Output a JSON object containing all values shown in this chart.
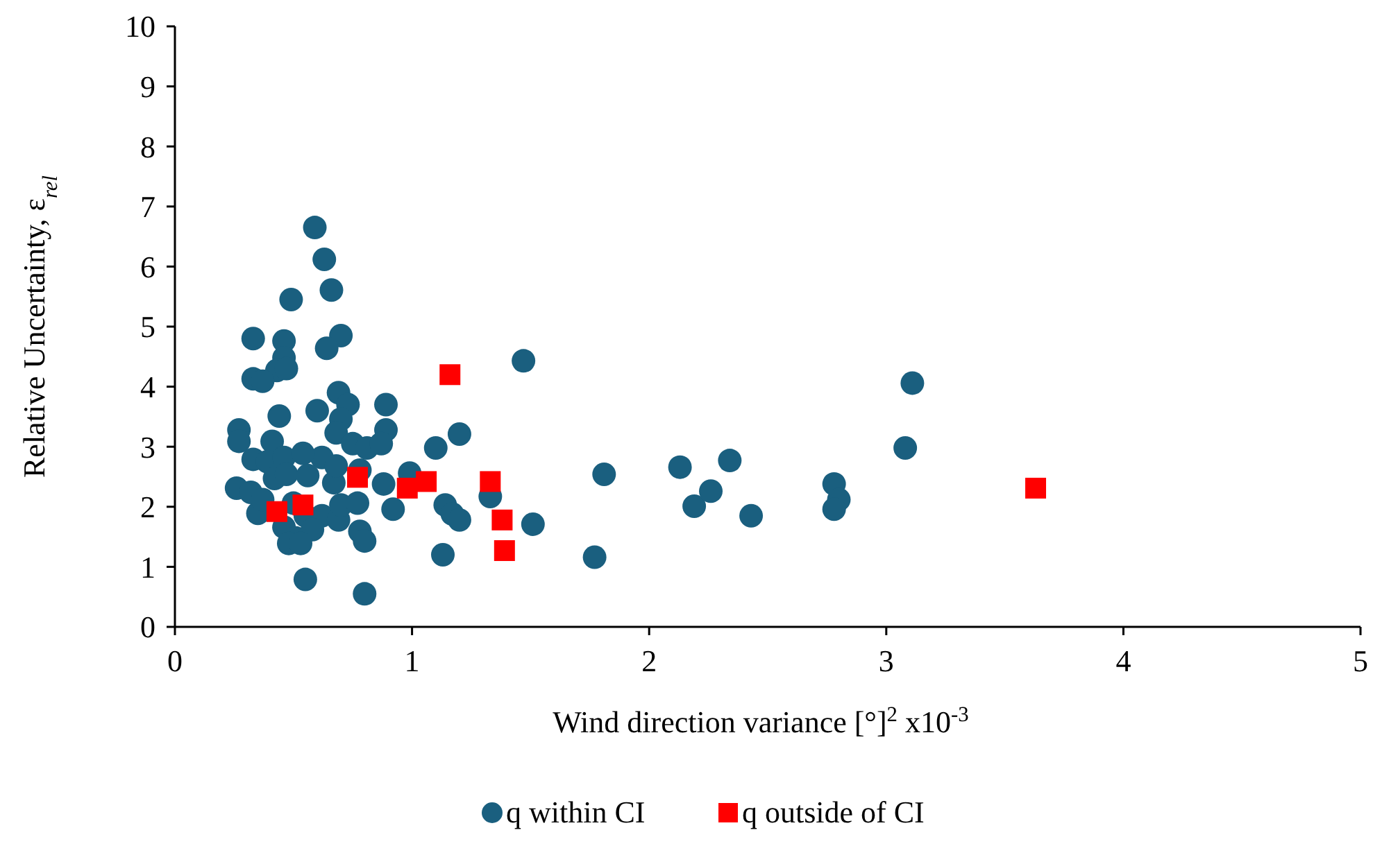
{
  "chart_data": {
    "type": "scatter",
    "xlabel": "Wind direction variance [°]$^{2}$ x10$^{-3}$",
    "ylabel": "Relative Uncertainty, ε$_{rel}$",
    "xlim": [
      0,
      5
    ],
    "xticks": [
      0,
      1,
      2,
      3,
      4,
      5
    ],
    "ylim": [
      0,
      10
    ],
    "yticks": [
      0,
      1,
      2,
      3,
      4,
      5,
      6,
      7,
      8,
      9,
      10
    ],
    "grid": false,
    "legend": "bottom",
    "series": [
      {
        "name": "q within CI",
        "color": "#1a5f7f",
        "marker": "circle",
        "x": [
          0.59,
          0.63,
          0.49,
          0.66,
          0.33,
          0.7,
          0.46,
          0.64,
          0.46,
          0.43,
          0.47,
          0.33,
          0.37,
          0.69,
          0.73,
          0.89,
          0.6,
          0.44,
          0.27,
          0.27,
          0.89,
          1.2,
          1.1,
          0.7,
          0.68,
          0.62,
          0.75,
          0.81,
          0.87,
          0.41,
          0.33,
          0.39,
          0.46,
          0.54,
          0.42,
          0.47,
          0.56,
          0.67,
          0.68,
          0.78,
          0.88,
          0.99,
          0.26,
          0.32,
          0.35,
          0.37,
          0.5,
          0.55,
          0.62,
          0.69,
          0.7,
          0.77,
          0.92,
          0.46,
          0.51,
          0.58,
          0.48,
          0.53,
          0.78,
          0.8,
          0.55,
          0.8,
          1.33,
          1.14,
          1.17,
          1.2,
          1.13,
          1.51,
          1.47,
          1.81,
          1.77,
          2.13,
          2.19,
          2.26,
          2.34,
          2.43,
          2.78,
          2.8,
          2.78,
          3.08,
          3.11
        ],
        "values": [
          6.65,
          6.12,
          5.45,
          5.61,
          4.8,
          4.85,
          4.76,
          4.64,
          4.48,
          4.27,
          4.3,
          4.13,
          4.09,
          3.9,
          3.7,
          3.7,
          3.6,
          3.51,
          3.28,
          3.09,
          3.28,
          3.21,
          2.98,
          3.46,
          3.23,
          2.82,
          3.05,
          2.98,
          3.05,
          3.09,
          2.79,
          2.75,
          2.82,
          2.89,
          2.47,
          2.54,
          2.52,
          2.4,
          2.68,
          2.61,
          2.38,
          2.56,
          2.31,
          2.24,
          1.89,
          2.12,
          2.06,
          1.85,
          1.85,
          1.78,
          2.03,
          2.06,
          1.96,
          1.66,
          1.48,
          1.62,
          1.39,
          1.39,
          1.59,
          1.43,
          0.79,
          0.55,
          2.17,
          2.03,
          1.88,
          1.78,
          1.2,
          1.71,
          4.43,
          2.54,
          1.16,
          2.66,
          2.01,
          2.26,
          2.77,
          1.85,
          2.38,
          2.12,
          1.96,
          2.98,
          4.06
        ]
      },
      {
        "name": "q outside of CI",
        "color": "#ff0000",
        "marker": "square",
        "x": [
          0.43,
          0.54,
          0.77,
          0.98,
          1.06,
          1.16,
          1.33,
          1.38,
          1.39,
          3.63
        ],
        "values": [
          1.92,
          2.03,
          2.49,
          2.31,
          2.42,
          4.2,
          2.42,
          1.78,
          1.27,
          2.31
        ]
      }
    ]
  }
}
